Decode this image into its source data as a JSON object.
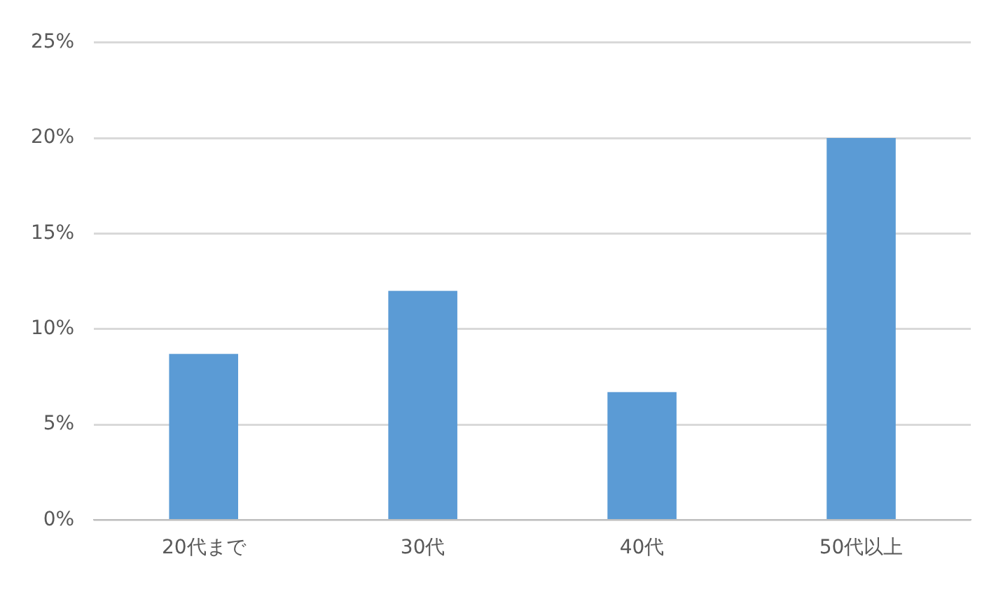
{
  "chart_data": {
    "type": "bar",
    "categories": [
      "20代まで",
      "30代",
      "40代",
      "50代以上"
    ],
    "values": [
      8.7,
      12,
      6.7,
      20
    ],
    "color": "#5b9bd5",
    "ylim": [
      0,
      25
    ],
    "yticks": [
      {
        "value": 0,
        "label": "0%"
      },
      {
        "value": 5,
        "label": "5%"
      },
      {
        "value": 10,
        "label": "10%"
      },
      {
        "value": 15,
        "label": "15%"
      },
      {
        "value": 20,
        "label": "20%"
      },
      {
        "value": 25,
        "label": "25%"
      }
    ],
    "grid": "y",
    "legend": false
  }
}
